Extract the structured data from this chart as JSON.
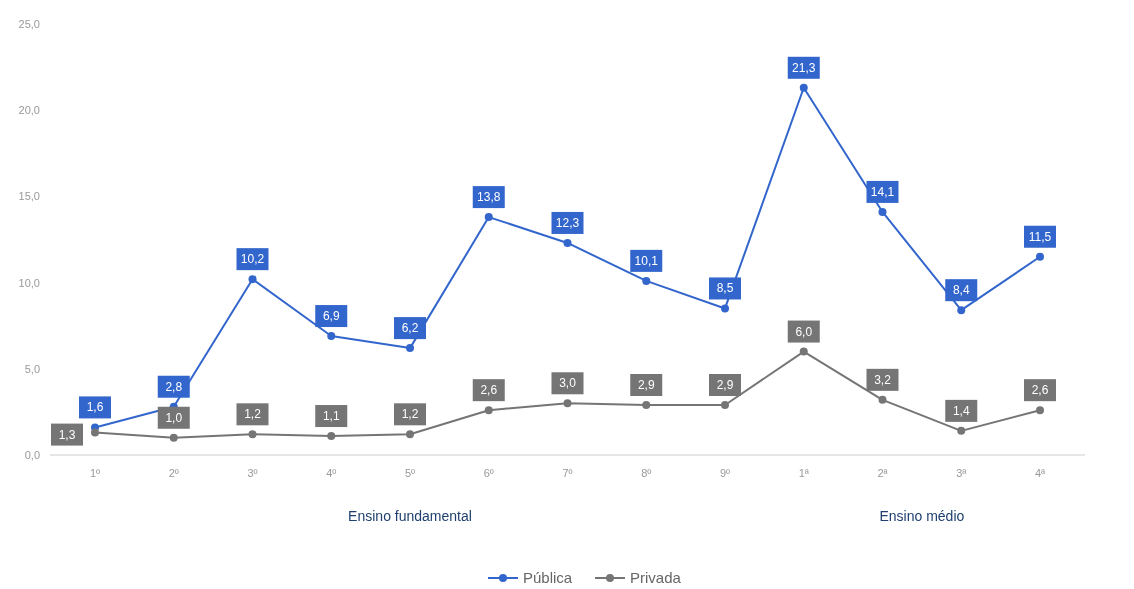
{
  "chart_data": {
    "type": "line",
    "categories": [
      "1º",
      "2º",
      "3º",
      "4º",
      "5º",
      "6º",
      "7º",
      "8º",
      "9º",
      "1ª",
      "2ª",
      "3ª",
      "4ª"
    ],
    "series": [
      {
        "name": "Pública",
        "color": "#3366cc",
        "values": [
          1.6,
          2.8,
          10.2,
          6.9,
          6.2,
          13.8,
          12.3,
          10.1,
          8.5,
          21.3,
          14.1,
          8.4,
          11.5
        ],
        "value_labels": [
          "1,6",
          "2,8",
          "10,2",
          "6,9",
          "6,2",
          "13,8",
          "12,3",
          "10,1",
          "8,5",
          "21,3",
          "14,1",
          "8,4",
          "11,5"
        ]
      },
      {
        "name": "Privada",
        "color": "#757575",
        "values": [
          1.3,
          1.0,
          1.2,
          1.1,
          1.2,
          2.6,
          3.0,
          2.9,
          2.9,
          6.0,
          3.2,
          1.4,
          2.6
        ],
        "value_labels": [
          "1,3",
          "1,0",
          "1,2",
          "1,1",
          "1,2",
          "2,6",
          "3,0",
          "2,9",
          "2,9",
          "6,0",
          "3,2",
          "1,4",
          "2,6"
        ]
      }
    ],
    "ylim": [
      0,
      25
    ],
    "yticks": [
      {
        "value": 0,
        "label": "0,0"
      },
      {
        "value": 5,
        "label": "5,0"
      },
      {
        "value": 10,
        "label": "10,0"
      },
      {
        "value": 15,
        "label": "15,0"
      },
      {
        "value": 20,
        "label": "20,0"
      },
      {
        "value": 25,
        "label": "25,0"
      }
    ],
    "annotations": [
      "Ensino fundamental",
      "Ensino médio"
    ],
    "marker": "circle",
    "line_style": "solid",
    "legend": "bottom",
    "grid": false
  }
}
